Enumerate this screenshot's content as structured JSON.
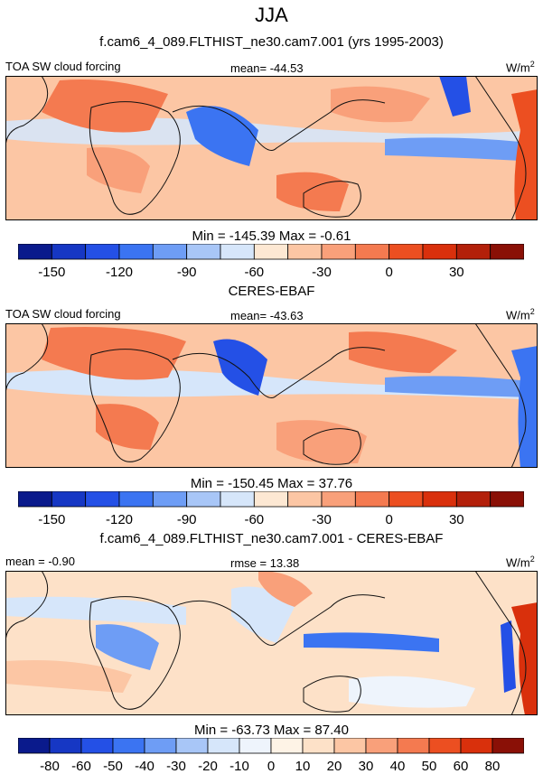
{
  "figure": {
    "season": "JJA"
  },
  "chart_data": [
    {
      "type": "heatmap",
      "title": "f.cam6_4_089.FLTHIST_ne30.cam7.001 (yrs 1995-2003)",
      "variable": "TOA SW cloud forcing",
      "units_base": "W/m",
      "units_exp": "2",
      "stat_left": "",
      "stat_center": "mean= -44.53",
      "minmax": "Min = -145.39 Max =  -0.61",
      "colorbar": {
        "levels": [
          -165,
          -150,
          -135,
          -120,
          -105,
          -90,
          -75,
          -60,
          -45,
          -30,
          -15,
          0,
          15,
          30,
          45
        ],
        "tick_labels": [
          "-150",
          "-120",
          "-90",
          "-60",
          "-30",
          "0",
          "30"
        ],
        "tick_values": [
          -150,
          -120,
          -90,
          -60,
          -30,
          0,
          30
        ],
        "colors": [
          "#0a1a8c",
          "#1637c4",
          "#2450e6",
          "#3b74f2",
          "#6e9df5",
          "#a8c6f7",
          "#d6e6fa",
          "#fde8d3",
          "#fcc6a4",
          "#f9a07a",
          "#f47a50",
          "#ec4f21",
          "#d9300c",
          "#b3200a",
          "#8a1006"
        ]
      }
    },
    {
      "type": "heatmap",
      "title": "CERES-EBAF",
      "variable": "TOA SW cloud forcing",
      "units_base": "W/m",
      "units_exp": "2",
      "stat_left": "",
      "stat_center": "mean= -43.63",
      "minmax": "Min = -150.45 Max =  37.76",
      "colorbar": {
        "levels": [
          -165,
          -150,
          -135,
          -120,
          -105,
          -90,
          -75,
          -60,
          -45,
          -30,
          -15,
          0,
          15,
          30,
          45
        ],
        "tick_labels": [
          "-150",
          "-120",
          "-90",
          "-60",
          "-30",
          "0",
          "30"
        ],
        "tick_values": [
          -150,
          -120,
          -90,
          -60,
          -30,
          0,
          30
        ],
        "colors": [
          "#0a1a8c",
          "#1637c4",
          "#2450e6",
          "#3b74f2",
          "#6e9df5",
          "#a8c6f7",
          "#d6e6fa",
          "#fde8d3",
          "#fcc6a4",
          "#f9a07a",
          "#f47a50",
          "#ec4f21",
          "#d9300c",
          "#b3200a",
          "#8a1006"
        ]
      }
    },
    {
      "type": "heatmap",
      "title": "f.cam6_4_089.FLTHIST_ne30.cam7.001 - CERES-EBAF",
      "variable": "",
      "units_base": "W/m",
      "units_exp": "2",
      "stat_left": "mean =  -0.90",
      "stat_center": "rmse =  13.38",
      "minmax": "Min = -63.73 Max =  87.40",
      "colorbar": {
        "levels": [
          -90,
          -80,
          -60,
          -50,
          -40,
          -30,
          -20,
          -10,
          0,
          10,
          20,
          30,
          40,
          50,
          60,
          80,
          90
        ],
        "tick_labels": [
          "-80",
          "-60",
          "-50",
          "-40",
          "-30",
          "-20",
          "-10",
          "0",
          "10",
          "20",
          "30",
          "40",
          "50",
          "60",
          "80"
        ],
        "tick_values": [
          -80,
          -60,
          -50,
          -40,
          -30,
          -20,
          -10,
          0,
          10,
          20,
          30,
          40,
          50,
          60,
          80
        ],
        "colors": [
          "#0a1a8c",
          "#1637c4",
          "#2450e6",
          "#3b74f2",
          "#6e9df5",
          "#a8c6f7",
          "#d6e6fa",
          "#eef4fc",
          "#fef3e6",
          "#fde1c8",
          "#fcc6a4",
          "#f9a07a",
          "#f47a50",
          "#ec4f21",
          "#d9300c",
          "#8a1006"
        ]
      }
    }
  ]
}
